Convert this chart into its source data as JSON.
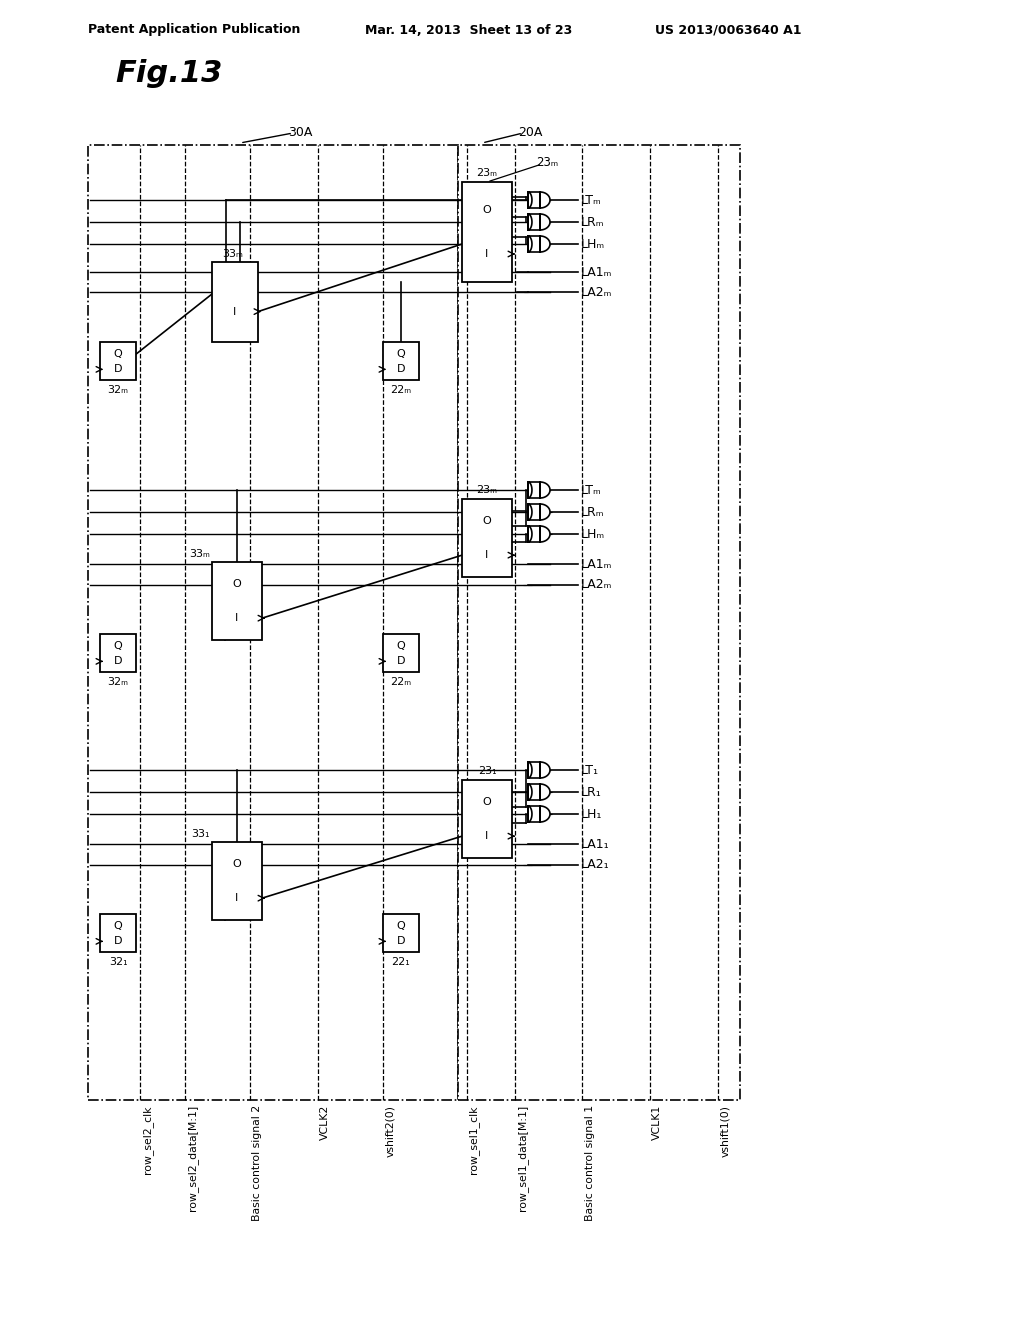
{
  "header_left": "Patent Application Publication",
  "header_mid": "Mar. 14, 2013  Sheet 13 of 23",
  "header_right": "US 2013/0063640 A1",
  "fig_label": "Fig.13",
  "label_30A": "30A",
  "label_20A": "20A",
  "outputs_M": [
    "LTₘ",
    "LRₘ",
    "LHₘ",
    "LA1ₘ",
    "LA2ₘ"
  ],
  "outputs_m": [
    "LTₘ",
    "LRₘ",
    "LHₘ",
    "LA1ₘ",
    "LA2ₘ"
  ],
  "outputs_1": [
    "LT₁",
    "LR₁",
    "LH₁",
    "LA1₁",
    "LA2₁"
  ],
  "blk_M": [
    "23ₘ",
    "33ₘ",
    "32ₘ",
    "22ₘ"
  ],
  "blk_m": [
    "23ₘ",
    "33ₘ",
    "32ₘ",
    "22ₘ"
  ],
  "blk_1": [
    "23₁",
    "33₁",
    "32₁",
    "22₁"
  ],
  "bottom_labels": [
    "row_sel2_clk",
    "row_sel2_data[M:1]",
    "Basic control signal 2",
    "VCLK2",
    "vshift2(0)",
    "row_sel1_clk",
    "row_sel1_data[M:1]",
    "Basic control signal 1",
    "VCLK1",
    "vshift1(0)"
  ]
}
